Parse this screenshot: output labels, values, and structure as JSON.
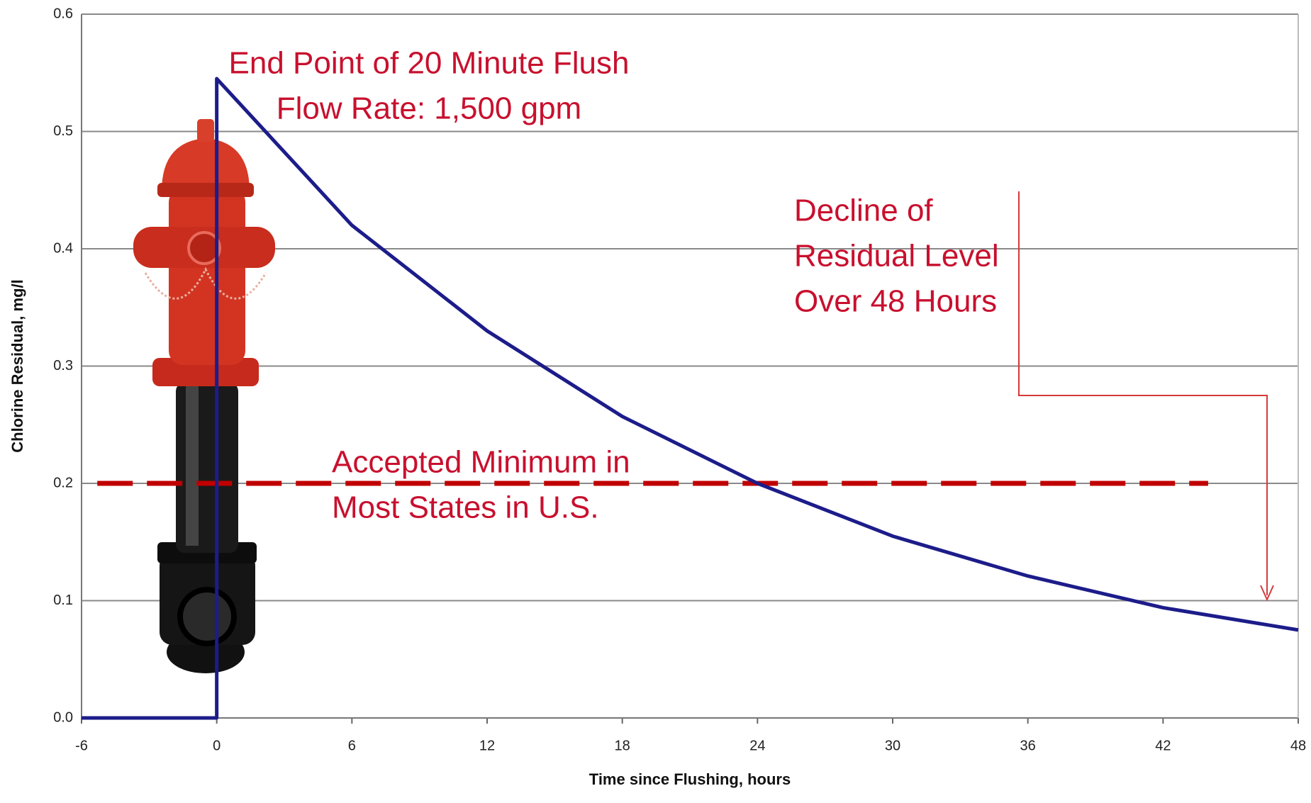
{
  "chart_data": {
    "type": "line",
    "x_label": "Time since Flushing, hours",
    "y_label": "Chlorine Residual, mg/l",
    "x": [
      -6,
      0,
      0,
      6,
      12,
      18,
      24,
      30,
      36,
      42,
      48
    ],
    "series": [
      {
        "color": "#1c1c8a",
        "values": [
          0,
          0,
          0.545,
          0.42,
          0.33,
          0.257,
          0.2,
          0.155,
          0.121,
          0.094,
          0.075
        ]
      }
    ],
    "threshold": {
      "value": 0.2,
      "x": [
        -5.3,
        44
      ],
      "color": "#c00000"
    },
    "xlim": [
      -6,
      48
    ],
    "ylim": [
      0,
      0.6
    ],
    "xticks": [
      -6,
      0,
      6,
      12,
      18,
      24,
      30,
      36,
      42,
      48
    ],
    "yticks": [
      {
        "value": 0,
        "label": "0.0"
      },
      0.1,
      0.2,
      0.3,
      0.4,
      0.5,
      0.6
    ],
    "grid": true,
    "annotations": [
      {
        "lines": [
          "End Point of 20 Minute Flush",
          "Flow Rate: 1,500 gpm"
        ]
      },
      {
        "lines": [
          "Decline of",
          "Residual Level",
          "Over 48 Hours"
        ]
      },
      {
        "lines": [
          "Accepted Minimum in",
          "Most States in U.S."
        ]
      }
    ]
  }
}
